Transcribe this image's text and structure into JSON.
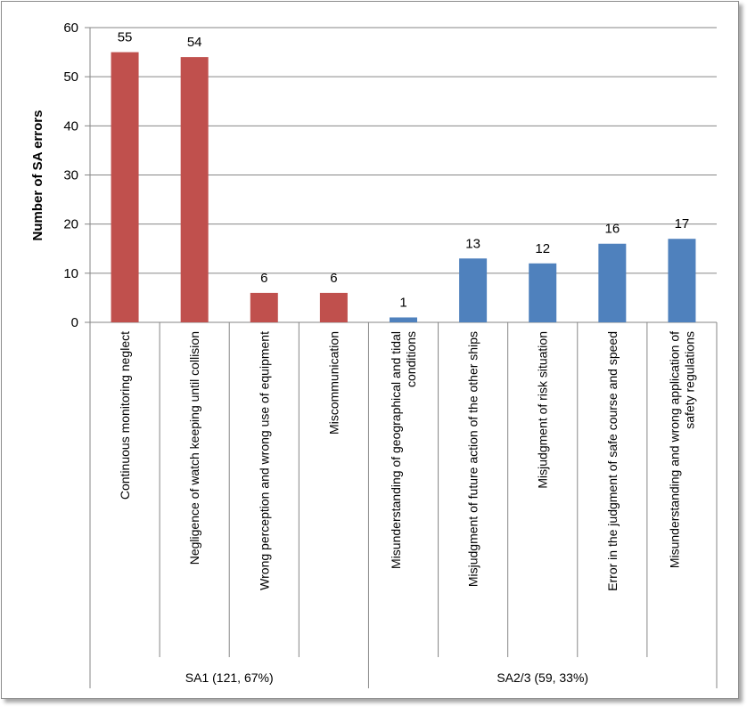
{
  "chart_data": {
    "type": "bar",
    "title": "",
    "xlabel": "",
    "ylabel": "Number of SA errors",
    "ylim": [
      0,
      60
    ],
    "yticks": [
      0,
      10,
      20,
      30,
      40,
      50,
      60
    ],
    "grid": true,
    "legend": "none",
    "categories": [
      [
        "Continuous monitoring neglect"
      ],
      [
        "Negligence of watch keeping until collision"
      ],
      [
        "Wrong perception and wrong use of equipment"
      ],
      [
        "Miscommunication"
      ],
      [
        "Misunderstanding of geographical and tidal",
        "conditions"
      ],
      [
        "Misjudgment of future action of the other ships"
      ],
      [
        "Misjudgment of risk situation"
      ],
      [
        "Error in the judgment of safe course and speed"
      ],
      [
        "Misunderstanding and wrong application of",
        "safety regulations"
      ]
    ],
    "values": [
      55,
      54,
      6,
      6,
      1,
      13,
      12,
      16,
      17
    ],
    "colors": [
      "#c0504d",
      "#c0504d",
      "#c0504d",
      "#c0504d",
      "#4f81bd",
      "#4f81bd",
      "#4f81bd",
      "#4f81bd",
      "#4f81bd"
    ],
    "groups": [
      {
        "label": "SA1 (121, 67%)",
        "start": 0,
        "end": 3
      },
      {
        "label": "SA2/3 (59, 33%)",
        "start": 4,
        "end": 8
      }
    ]
  }
}
